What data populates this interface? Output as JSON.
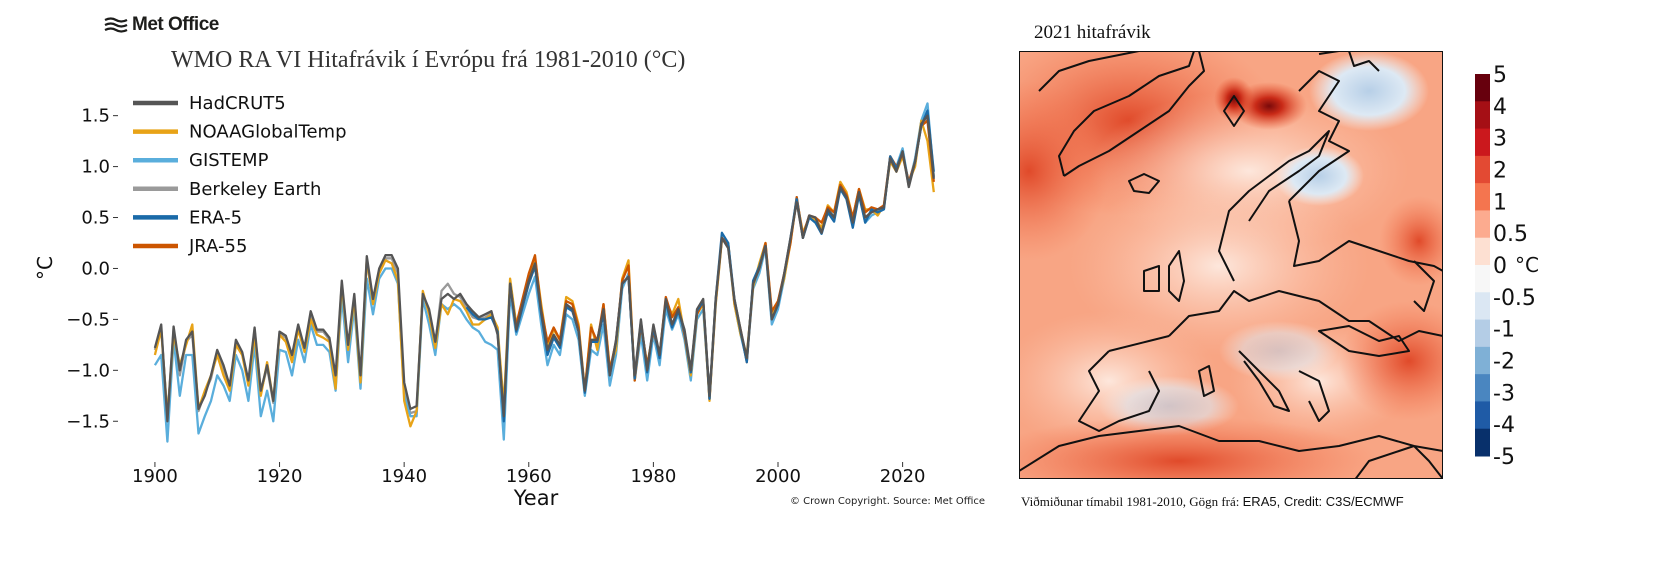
{
  "logo": {
    "text": "Met Office"
  },
  "chart_data": [
    {
      "type": "line",
      "title": "WMO RA VI Hitafrávik í Evrópu frá 1981-2010 (°C)",
      "xlabel": "Year",
      "ylabel": "°C",
      "xlim": [
        1896,
        2026
      ],
      "ylim": [
        -1.9,
        1.85
      ],
      "xticks": [
        1900,
        1920,
        1940,
        1960,
        1980,
        2000,
        2020
      ],
      "yticks": [
        1.5,
        1.0,
        0.5,
        0.0,
        -0.5,
        -1.0,
        -1.5
      ],
      "ytick_labels": [
        "1.5",
        "1.0",
        "0.5",
        "0.0",
        "−0.5",
        "−1.0",
        "−1.5"
      ],
      "grid": false,
      "legend_position": "top-left",
      "credit": "© Crown Copyright. Source: Met Office",
      "x_start": 1900,
      "series": [
        {
          "name": "HadCRUT5",
          "color": "#555555",
          "values": [
            -0.78,
            -0.55,
            -1.5,
            -0.57,
            -1.0,
            -0.7,
            -0.62,
            -1.38,
            -1.25,
            -1.05,
            -0.8,
            -0.95,
            -1.15,
            -0.7,
            -0.82,
            -1.1,
            -0.58,
            -1.2,
            -0.95,
            -1.3,
            -0.62,
            -0.66,
            -0.85,
            -0.55,
            -0.78,
            -0.42,
            -0.6,
            -0.6,
            -0.68,
            -1.05,
            -0.12,
            -0.75,
            -0.25,
            -1.05,
            0.12,
            -0.3,
            0.0,
            0.13,
            0.13,
            0.0,
            -1.12,
            -1.38,
            -1.35,
            -0.25,
            -0.4,
            -0.72,
            -0.3,
            -0.25,
            -0.3,
            -0.25,
            -0.35,
            -0.42,
            -0.48,
            -0.45,
            -0.42,
            -0.65,
            -1.45,
            -0.15,
            -0.6,
            -0.35,
            -0.12,
            0.05,
            -0.42,
            -0.8,
            -0.65,
            -0.75,
            -0.35,
            -0.4,
            -0.62,
            -1.2,
            -0.7,
            -0.7,
            -0.4,
            -1.05,
            -0.7,
            -0.15,
            -0.08,
            -1.05,
            -0.5,
            -1.0,
            -0.55,
            -0.85,
            -0.3,
            -0.55,
            -0.4,
            -0.6,
            -1.0,
            -0.4,
            -0.3,
            -1.25,
            -0.3,
            0.3,
            0.2,
            -0.3,
            -0.6,
            -0.88,
            -0.15,
            0.0,
            0.22,
            -0.5,
            -0.35,
            -0.05,
            0.3,
            0.65,
            0.3,
            0.52,
            0.5,
            0.35,
            0.58,
            0.5,
            0.8,
            0.7,
            0.45,
            0.75,
            0.5,
            0.55,
            0.58,
            0.6,
            1.08,
            0.95,
            1.15,
            0.8,
            1.05,
            1.42,
            1.5,
            0.88
          ]
        },
        {
          "name": "NOAAGlobalTemp",
          "color": "#e8a317",
          "values": [
            -0.85,
            -0.6,
            -1.45,
            -0.65,
            -0.95,
            -0.75,
            -0.55,
            -1.38,
            -1.2,
            -1.05,
            -0.85,
            -1.05,
            -1.2,
            -0.75,
            -0.85,
            -1.15,
            -0.65,
            -1.25,
            -0.92,
            -1.3,
            -0.65,
            -0.72,
            -0.92,
            -0.6,
            -0.82,
            -0.5,
            -0.65,
            -0.68,
            -0.72,
            -1.18,
            -0.15,
            -0.8,
            -0.3,
            -1.12,
            0.1,
            -0.35,
            -0.05,
            0.08,
            0.05,
            -0.12,
            -1.3,
            -1.55,
            -1.4,
            -0.22,
            -0.45,
            -0.78,
            -0.35,
            -0.45,
            -0.3,
            -0.32,
            -0.42,
            -0.55,
            -0.55,
            -0.5,
            -0.45,
            -0.58,
            -1.35,
            -0.1,
            -0.55,
            -0.35,
            -0.1,
            0.1,
            -0.35,
            -0.75,
            -0.6,
            -0.7,
            -0.28,
            -0.32,
            -0.55,
            -1.2,
            -0.55,
            -0.8,
            -0.35,
            -0.98,
            -0.8,
            -0.1,
            0.08,
            -1.1,
            -0.55,
            -0.95,
            -0.6,
            -0.85,
            -0.32,
            -0.45,
            -0.3,
            -0.65,
            -1.05,
            -0.45,
            -0.35,
            -1.3,
            -0.35,
            0.28,
            0.25,
            -0.35,
            -0.65,
            -0.85,
            -0.18,
            0.05,
            0.25,
            -0.45,
            -0.32,
            -0.1,
            0.25,
            0.68,
            0.35,
            0.5,
            0.48,
            0.4,
            0.62,
            0.55,
            0.85,
            0.75,
            0.5,
            0.78,
            0.58,
            0.58,
            0.52,
            0.62,
            1.05,
            0.95,
            1.1,
            0.85,
            1.0,
            1.45,
            1.25,
            0.75
          ]
        },
        {
          "name": "GISTEMP",
          "color": "#5aaedc",
          "values": [
            -0.95,
            -0.85,
            -1.7,
            -0.7,
            -1.25,
            -0.85,
            -0.85,
            -1.62,
            -1.45,
            -1.3,
            -1.05,
            -1.15,
            -1.3,
            -0.85,
            -1.0,
            -1.3,
            -0.75,
            -1.45,
            -1.2,
            -1.5,
            -0.8,
            -0.82,
            -1.05,
            -0.7,
            -0.92,
            -0.55,
            -0.75,
            -0.75,
            -0.82,
            -1.2,
            -0.28,
            -0.92,
            -0.38,
            -1.18,
            -0.1,
            -0.45,
            -0.1,
            0.0,
            0.0,
            -0.15,
            -1.25,
            -1.45,
            -1.45,
            -0.3,
            -0.55,
            -0.85,
            -0.35,
            -0.4,
            -0.35,
            -0.4,
            -0.5,
            -0.58,
            -0.62,
            -0.72,
            -0.75,
            -0.8,
            -1.68,
            -0.25,
            -0.65,
            -0.45,
            -0.25,
            -0.08,
            -0.55,
            -0.95,
            -0.75,
            -0.85,
            -0.45,
            -0.5,
            -0.7,
            -1.25,
            -0.8,
            -0.85,
            -0.55,
            -1.15,
            -0.85,
            -0.2,
            -0.05,
            -1.1,
            -0.65,
            -1.1,
            -0.65,
            -0.95,
            -0.4,
            -0.6,
            -0.45,
            -0.7,
            -1.1,
            -0.5,
            -0.4,
            -1.25,
            -0.35,
            0.3,
            0.22,
            -0.35,
            -0.65,
            -0.9,
            -0.2,
            -0.05,
            0.2,
            -0.55,
            -0.4,
            -0.1,
            0.28,
            0.7,
            0.3,
            0.5,
            0.45,
            0.38,
            0.6,
            0.5,
            0.82,
            0.72,
            0.42,
            0.75,
            0.45,
            0.52,
            0.55,
            0.58,
            1.1,
            1.0,
            1.18,
            0.82,
            1.08,
            1.45,
            1.62,
            0.9
          ]
        },
        {
          "name": "Berkeley Earth",
          "color": "#9a9a9a",
          "values": [
            -0.8,
            -0.58,
            -1.45,
            -0.6,
            -1.05,
            -0.72,
            -0.65,
            -1.4,
            -1.22,
            -1.08,
            -0.82,
            -0.98,
            -1.18,
            -0.72,
            -0.84,
            -1.12,
            -0.6,
            -1.22,
            -0.97,
            -1.32,
            -0.64,
            -0.68,
            -0.88,
            -0.58,
            -0.8,
            -0.45,
            -0.62,
            -0.62,
            -0.7,
            -1.1,
            -0.15,
            -0.78,
            -0.28,
            -1.1,
            0.08,
            -0.33,
            -0.03,
            0.1,
            0.1,
            -0.05,
            -1.2,
            -1.42,
            -1.4,
            -0.25,
            -0.42,
            -0.75,
            -0.22,
            -0.15,
            -0.25,
            -0.28,
            -0.38,
            -0.48,
            -0.5,
            -0.48,
            -0.44,
            -0.62,
            -1.48,
            -0.15,
            -0.6,
            -0.38,
            -0.13,
            0.03,
            -0.43,
            -0.82,
            -0.67,
            -0.77,
            -0.37,
            -0.42,
            -0.62,
            -1.22,
            -0.72,
            -0.72,
            -0.42,
            -1.05,
            -0.72,
            -0.15,
            -0.08,
            -1.08,
            -0.52,
            -1.0,
            -0.57,
            -0.86,
            -0.32,
            -0.55,
            -0.4,
            -0.62,
            -1.02,
            -0.42,
            -0.32,
            -1.27,
            -0.32,
            0.3,
            0.2,
            -0.32,
            -0.62,
            -0.88,
            -0.15,
            0.0,
            0.22,
            -0.5,
            -0.36,
            -0.06,
            0.28,
            0.66,
            0.31,
            0.52,
            0.48,
            0.36,
            0.58,
            0.5,
            0.8,
            0.7,
            0.46,
            0.76,
            0.5,
            0.56,
            0.56,
            0.6,
            1.08,
            0.96,
            1.14,
            0.8,
            1.04,
            1.42,
            1.48,
            0.9
          ]
        },
        {
          "name": "ERA-5",
          "color": "#1a6aa8",
          "values": [
            null,
            null,
            null,
            null,
            null,
            null,
            null,
            null,
            null,
            null,
            null,
            null,
            null,
            null,
            null,
            null,
            null,
            null,
            null,
            null,
            null,
            null,
            null,
            null,
            null,
            null,
            null,
            null,
            null,
            null,
            null,
            null,
            null,
            null,
            null,
            null,
            null,
            null,
            null,
            null,
            null,
            null,
            null,
            null,
            null,
            null,
            null,
            null,
            null,
            null,
            -0.38,
            -0.45,
            -0.5,
            -0.5,
            -0.48,
            -0.62,
            -1.5,
            -0.15,
            -0.62,
            -0.38,
            -0.15,
            0.02,
            -0.45,
            -0.85,
            -0.68,
            -0.78,
            -0.38,
            -0.42,
            -0.62,
            -1.22,
            -0.72,
            -0.72,
            -0.45,
            -1.05,
            -0.72,
            -0.15,
            -0.08,
            -1.08,
            -0.52,
            -1.02,
            -0.58,
            -0.88,
            -0.32,
            -0.58,
            -0.42,
            -0.62,
            -1.02,
            -0.42,
            -0.32,
            -1.28,
            -0.3,
            0.35,
            0.25,
            -0.3,
            -0.62,
            -0.92,
            -0.12,
            0.02,
            0.22,
            -0.5,
            -0.36,
            -0.06,
            0.3,
            0.68,
            0.3,
            0.5,
            0.45,
            0.34,
            0.55,
            0.46,
            0.78,
            0.68,
            0.4,
            0.72,
            0.45,
            0.58,
            0.55,
            0.58,
            1.1,
            0.98,
            1.15,
            0.82,
            1.05,
            1.4,
            1.55,
            0.95
          ]
        },
        {
          "name": "JRA-55",
          "color": "#cc5500",
          "values": [
            null,
            null,
            null,
            null,
            null,
            null,
            null,
            null,
            null,
            null,
            null,
            null,
            null,
            null,
            null,
            null,
            null,
            null,
            null,
            null,
            null,
            null,
            null,
            null,
            null,
            null,
            null,
            null,
            null,
            null,
            null,
            null,
            null,
            null,
            null,
            null,
            null,
            null,
            null,
            null,
            null,
            null,
            null,
            null,
            null,
            null,
            null,
            null,
            null,
            null,
            null,
            null,
            null,
            null,
            null,
            null,
            null,
            null,
            -0.55,
            -0.3,
            -0.05,
            0.13,
            -0.4,
            -0.72,
            -0.58,
            -0.7,
            -0.32,
            -0.35,
            -0.58,
            -1.2,
            -0.58,
            -0.72,
            -0.35,
            -1.0,
            -0.72,
            -0.12,
            0.03,
            -1.1,
            -0.55,
            -0.95,
            -0.62,
            -0.85,
            -0.28,
            -0.48,
            -0.38,
            -0.65,
            -1.02,
            -0.45,
            -0.32,
            -1.28,
            -0.32,
            0.3,
            0.24,
            -0.32,
            -0.6,
            -0.92,
            -0.15,
            0.0,
            0.25,
            -0.42,
            -0.32,
            -0.05,
            0.25,
            0.7,
            0.32,
            0.52,
            0.5,
            0.45,
            0.6,
            0.55,
            0.82,
            0.72,
            0.5,
            0.78,
            0.55,
            0.6,
            0.58,
            0.62,
            1.1,
            1.0,
            1.12,
            0.85,
            1.05,
            1.4,
            1.45,
            0.85
          ]
        }
      ]
    },
    {
      "type": "heatmap",
      "title": "2021 hitafrávik",
      "colorbar": {
        "unit": "°C",
        "levels": [
          "5",
          "4",
          "3",
          "2",
          "1",
          "0.5",
          "0",
          "-0.5",
          "-1",
          "-2",
          "-3",
          "-4",
          "-5"
        ],
        "colors": [
          "#67000d",
          "#a50f15",
          "#cb181d",
          "#e34a33",
          "#f4754f",
          "#fcab8f",
          "#fde0d2",
          "#f7f7f7",
          "#dbe7f3",
          "#b4cde6",
          "#7fb0d6",
          "#4a86c0",
          "#1f5ba6",
          "#08306b"
        ]
      },
      "footnote_prefix": "Viðmiðunar tímabil 1981-2010, Gögn frá: ",
      "footnote_source": "ERA5, Credit: C3S/ECMWF"
    }
  ]
}
